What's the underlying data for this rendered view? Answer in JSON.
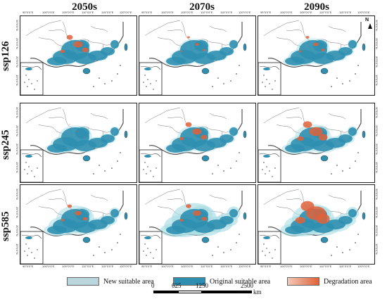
{
  "columns": [
    "2050s",
    "2070s",
    "2090s"
  ],
  "rows": [
    "ssp126",
    "ssp245",
    "ssp585"
  ],
  "map_ticks": {
    "top": [
      "95°0'0\"E",
      "100°0'0\"E",
      "105°0'0\"E",
      "110°0'0\"E",
      "115°0'0\"E",
      "120°0'0\"E"
    ],
    "bottom": [
      "95°0'0\"E",
      "100°0'0\"E",
      "105°0'0\"E",
      "110°0'0\"E",
      "115°0'0\"E",
      "120°0'0\"E"
    ],
    "left": [
      "30°0'0\"N",
      "25°0'0\"N",
      "20°0'0\"N",
      "15°0'0\"N"
    ],
    "right": [
      "30°0'0\"N",
      "25°0'0\"N",
      "20°0'0\"N",
      "15°0'0\"N"
    ]
  },
  "north_arrow": "N",
  "legend": [
    {
      "label": "New suitable area",
      "color": "#b8d6dc"
    },
    {
      "label": "Original suitable area",
      "color": "#2f8fb0"
    },
    {
      "label": "Degradation area",
      "color": "#e0623a"
    }
  ],
  "scale": {
    "ticks": [
      "0",
      "625",
      "1250",
      "2500"
    ],
    "unit": "km"
  },
  "colors": {
    "original": "#2f8fb0",
    "new": "#a9dde4",
    "degradation": "#e0623a",
    "boundary": "#444444",
    "sea": "#ffffff"
  },
  "degradation_level": [
    [
      0.35,
      0.15,
      0.2
    ],
    [
      0.05,
      0.35,
      0.5
    ],
    [
      0.25,
      0.3,
      0.75
    ]
  ],
  "new_area_level": [
    [
      0.1,
      0.15,
      0.2
    ],
    [
      0.2,
      0.2,
      0.3
    ],
    [
      0.35,
      0.6,
      0.5
    ]
  ]
}
